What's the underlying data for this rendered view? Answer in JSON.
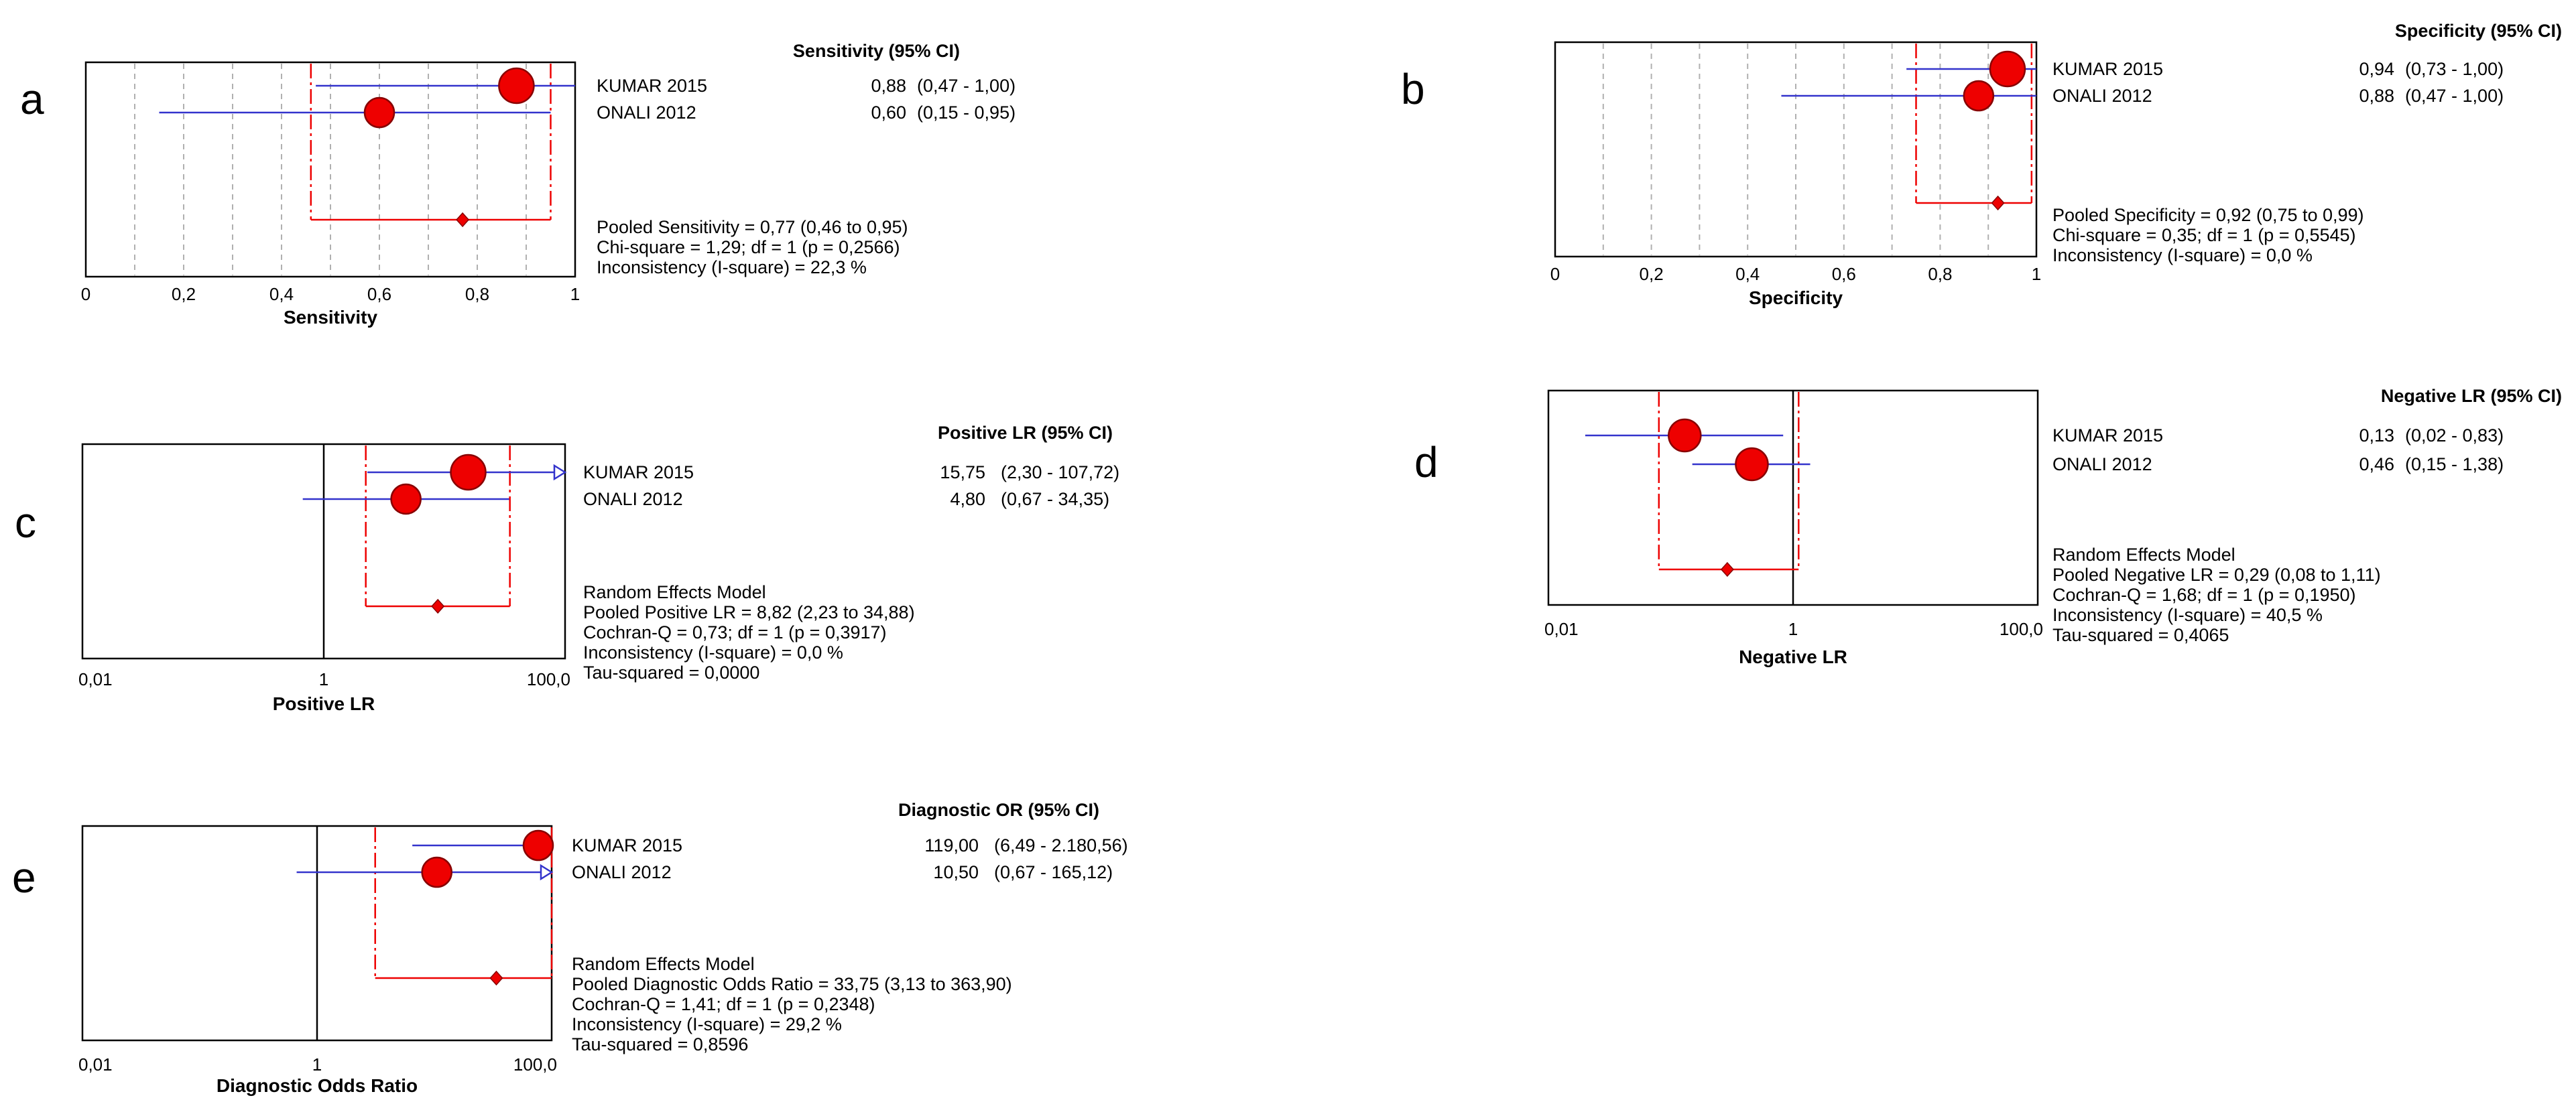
{
  "chart_data": [
    {
      "id": "a",
      "type": "forest",
      "panel_letter": "a",
      "scale": "linear",
      "xlim": [
        0,
        1
      ],
      "xticks": [
        "0",
        "0,2",
        "0,4",
        "0,6",
        "0,8",
        "1"
      ],
      "xlabel": "Sensitivity",
      "header": "Sensitivity (95% CI)",
      "null_line": null,
      "grid": true,
      "studies": [
        {
          "name": "KUMAR 2015",
          "estimate": 0.88,
          "lower": 0.47,
          "upper": 1.0,
          "est_text": "0,88",
          "ci_text": "(0,47 - 1,00)"
        },
        {
          "name": "ONALI 2012",
          "estimate": 0.6,
          "lower": 0.15,
          "upper": 0.95,
          "est_text": "0,60",
          "ci_text": "(0,15 - 0,95)"
        }
      ],
      "pooled": {
        "estimate": 0.77,
        "lower": 0.46,
        "upper": 0.95
      },
      "stats": [
        "Pooled Sensitivity = 0,77 (0,46 to 0,95)",
        "Chi-square = 1,29; df =  1 (p = 0,2566)",
        "Inconsistency (I-square) = 22,3 %"
      ]
    },
    {
      "id": "b",
      "type": "forest",
      "panel_letter": "b",
      "scale": "linear",
      "xlim": [
        0,
        1
      ],
      "xticks": [
        "0",
        "0,2",
        "0,4",
        "0,6",
        "0,8",
        "1"
      ],
      "xlabel": "Specificity",
      "header": "Specificity (95% CI)",
      "null_line": null,
      "grid": true,
      "studies": [
        {
          "name": "KUMAR 2015",
          "estimate": 0.94,
          "lower": 0.73,
          "upper": 1.0,
          "est_text": "0,94",
          "ci_text": "(0,73 - 1,00)"
        },
        {
          "name": "ONALI 2012",
          "estimate": 0.88,
          "lower": 0.47,
          "upper": 1.0,
          "est_text": "0,88",
          "ci_text": "(0,47 - 1,00)"
        }
      ],
      "pooled": {
        "estimate": 0.92,
        "lower": 0.75,
        "upper": 0.99
      },
      "stats": [
        "Pooled Specificity = 0,92 (0,75 to 0,99)",
        "Chi-square = 0,35; df =  1 (p = 0,5545)",
        "Inconsistency (I-square) = 0,0 %"
      ]
    },
    {
      "id": "c",
      "type": "forest",
      "panel_letter": "c",
      "scale": "log",
      "xlim": [
        0.01,
        100
      ],
      "xticks": [
        "0,01",
        "1",
        "100,0"
      ],
      "xlabel": "Positive LR",
      "header": "Positive LR (95% CI)",
      "null_line": 1,
      "grid": false,
      "studies": [
        {
          "name": "KUMAR 2015",
          "estimate": 15.75,
          "lower": 2.3,
          "upper": 107.72,
          "est_text": "15,75",
          "ci_text": "(2,30 - 107,72)"
        },
        {
          "name": "ONALI 2012",
          "estimate": 4.8,
          "lower": 0.67,
          "upper": 34.35,
          "est_text": "4,80",
          "ci_text": "(0,67 - 34,35)"
        }
      ],
      "pooled": {
        "estimate": 8.82,
        "lower": 2.23,
        "upper": 34.88
      },
      "stats": [
        "Random Effects Model",
        "Pooled Positive LR = 8,82 (2,23 to 34,88)",
        "Cochran-Q = 0,73; df =  1 (p = 0,3917)",
        "Inconsistency (I-square) = 0,0 %",
        "Tau-squared = 0,0000"
      ]
    },
    {
      "id": "d",
      "type": "forest",
      "panel_letter": "d",
      "scale": "log",
      "xlim": [
        0.01,
        100
      ],
      "xticks": [
        "0,01",
        "1",
        "100,0"
      ],
      "xlabel": "Negative LR",
      "header": "Negative LR (95% CI)",
      "null_line": 1,
      "grid": false,
      "studies": [
        {
          "name": "KUMAR 2015",
          "estimate": 0.13,
          "lower": 0.02,
          "upper": 0.83,
          "est_text": "0,13",
          "ci_text": "(0,02 - 0,83)"
        },
        {
          "name": "ONALI 2012",
          "estimate": 0.46,
          "lower": 0.15,
          "upper": 1.38,
          "est_text": "0,46",
          "ci_text": "(0,15 - 1,38)"
        }
      ],
      "pooled": {
        "estimate": 0.29,
        "lower": 0.08,
        "upper": 1.11
      },
      "stats": [
        "Random Effects Model",
        "Pooled Negative LR = 0,29 (0,08 to 1,11)",
        "Cochran-Q = 1,68; df =  1 (p = 0,1950)",
        "Inconsistency (I-square) = 40,5 %",
        "Tau-squared = 0,4065"
      ]
    },
    {
      "id": "e",
      "type": "forest",
      "panel_letter": "e",
      "scale": "log",
      "xlim": [
        0.01,
        100
      ],
      "xticks": [
        "0,01",
        "1",
        "100,0"
      ],
      "xlabel": "Diagnostic Odds Ratio",
      "header": "Diagnostic OR (95% CI)",
      "null_line": 1,
      "grid": false,
      "studies": [
        {
          "name": "KUMAR 2015",
          "estimate": 119.0,
          "lower": 6.49,
          "upper": 2180.56,
          "est_text": "119,00",
          "ci_text": "(6,49 - 2.180,56)"
        },
        {
          "name": "ONALI 2012",
          "estimate": 10.5,
          "lower": 0.67,
          "upper": 165.12,
          "est_text": "10,50",
          "ci_text": "(0,67 - 165,12)"
        }
      ],
      "pooled": {
        "estimate": 33.75,
        "lower": 3.13,
        "upper": 363.9
      },
      "stats": [
        "Random Effects Model",
        "Pooled Diagnostic Odds Ratio = 33,75 (3,13 to 363,90)",
        "Cochran-Q = 1,41; df =  1 (p = 0,2348)",
        "Inconsistency (I-square) = 29,2 %",
        "Tau-squared = 0,8596"
      ]
    }
  ],
  "colors": {
    "ci_line": "#3333cc",
    "marker_fill": "#ee0000",
    "marker_stroke": "#880000",
    "pooled": "#ee0000",
    "grid": "#b0b0b0",
    "frame": "#000000"
  }
}
